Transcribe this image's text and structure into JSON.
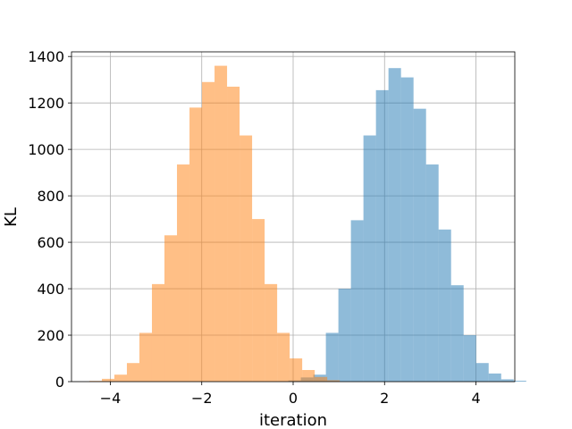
{
  "chart_data": {
    "type": "bar",
    "title": "",
    "xlabel": "iteration",
    "ylabel": "KL",
    "xlim": [
      -4.85,
      4.85
    ],
    "ylim": [
      0,
      1420
    ],
    "xticks": [
      -4,
      -2,
      0,
      2,
      4
    ],
    "xtick_labels": [
      "−4",
      "−2",
      "0",
      "2",
      "4"
    ],
    "yticks": [
      0,
      200,
      400,
      600,
      800,
      1000,
      1200,
      1400
    ],
    "ytick_labels": [
      "0",
      "200",
      "400",
      "600",
      "800",
      "1000",
      "1200",
      "1400"
    ],
    "grid": true,
    "series": [
      {
        "color": "#1f77b4",
        "opacity": 0.5,
        "bin_width": 0.274,
        "bin_start": -0.38,
        "values": [
          1,
          5,
          18,
          30,
          210,
          400,
          695,
          1060,
          1255,
          1350,
          1310,
          1175,
          935,
          655,
          415,
          200,
          80,
          35,
          10,
          4
        ]
      },
      {
        "color": "#ff7f0e",
        "opacity": 0.5,
        "bin_width": 0.274,
        "bin_start": -4.46,
        "values": [
          3,
          12,
          30,
          80,
          210,
          420,
          630,
          935,
          1180,
          1290,
          1360,
          1270,
          1060,
          700,
          420,
          210,
          100,
          50,
          20,
          6
        ]
      }
    ]
  }
}
